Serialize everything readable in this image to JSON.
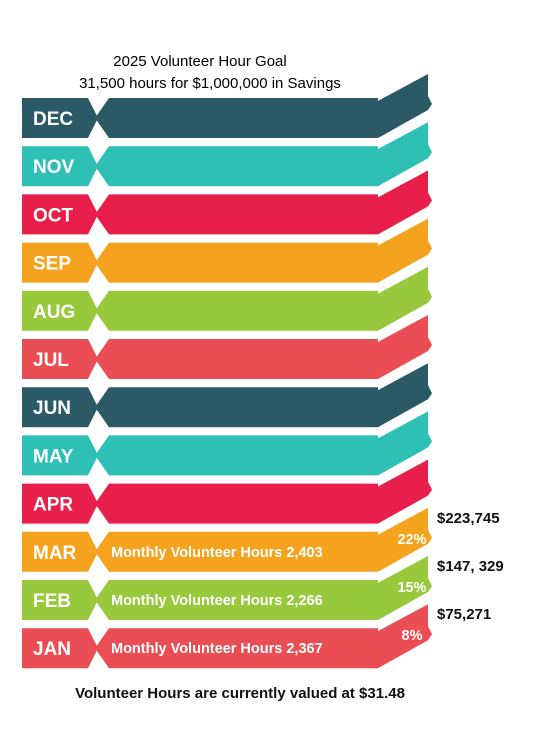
{
  "header": {
    "title": "2025 Volunteer Hour Goal",
    "subtitle": "31,500 hours for $1,000,000 in Savings"
  },
  "months": [
    {
      "label": "DEC",
      "color": "#2b5a66"
    },
    {
      "label": "NOV",
      "color": "#2ebfb5"
    },
    {
      "label": "OCT",
      "color": "#e81f4b"
    },
    {
      "label": "SEP",
      "color": "#f5a31e"
    },
    {
      "label": "AUG",
      "color": "#98c93c"
    },
    {
      "label": "JUL",
      "color": "#ea4e54"
    },
    {
      "label": "JUN",
      "color": "#2b5a66"
    },
    {
      "label": "MAY",
      "color": "#2ebfb5"
    },
    {
      "label": "APR",
      "color": "#e81f4b"
    },
    {
      "label": "MAR",
      "color": "#f5a31e",
      "hours": "Monthly Volunteer Hours 2,403",
      "percent": "22%",
      "value": "$223,745"
    },
    {
      "label": "FEB",
      "color": "#98c93c",
      "hours": "Monthly Volunteer Hours 2,266",
      "percent": "15%",
      "value": "$147, 329"
    },
    {
      "label": "JAN",
      "color": "#ea4e54",
      "hours": "Monthly Volunteer Hours 2,367",
      "percent": "8%",
      "value": "$75,271"
    }
  ],
  "footer": {
    "text": "Volunteer Hours are currently valued at $31.48"
  }
}
